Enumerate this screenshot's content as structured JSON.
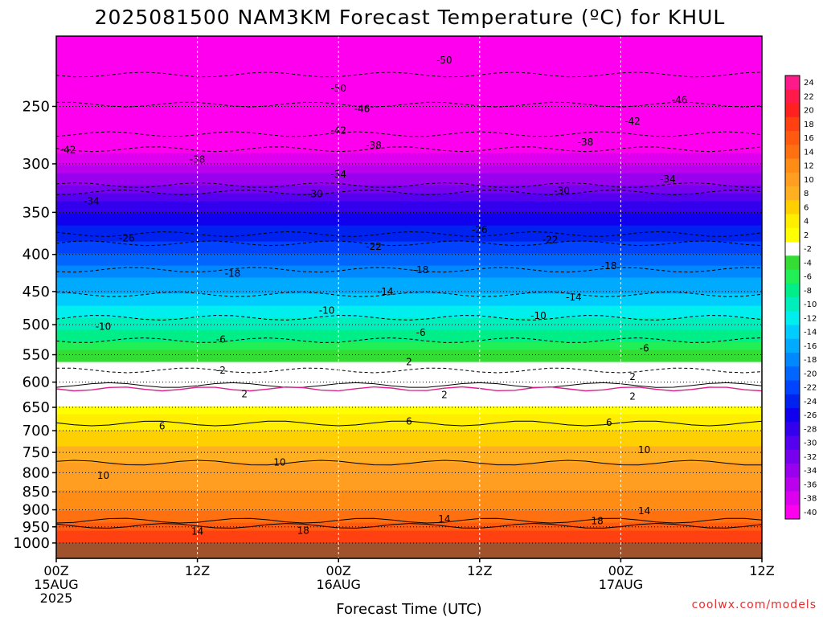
{
  "title": "2025081500 NAM3KM Forecast Temperature (ºC) for KHUL",
  "credit": "coolwx.com/models",
  "chart_data": {
    "type": "heatmap",
    "title": "2025081500 NAM3KM Forecast Temperature (ºC) for KHUL",
    "xlabel": "Forecast Time (UTC)",
    "ylabel": "",
    "x_range_hours": [
      0,
      60
    ],
    "y_range_hpa": [
      1050,
      200
    ],
    "y_scale": "log",
    "grid": true,
    "x_ticks": [
      {
        "hour": 0,
        "lines": [
          "00Z",
          "15AUG",
          "2025"
        ]
      },
      {
        "hour": 12,
        "lines": [
          "12Z"
        ]
      },
      {
        "hour": 24,
        "lines": [
          "00Z",
          "16AUG"
        ]
      },
      {
        "hour": 36,
        "lines": [
          "12Z"
        ]
      },
      {
        "hour": 48,
        "lines": [
          "00Z",
          "17AUG"
        ]
      },
      {
        "hour": 60,
        "lines": [
          "12Z"
        ]
      }
    ],
    "y_ticks": [
      250,
      300,
      350,
      400,
      450,
      500,
      550,
      600,
      650,
      700,
      750,
      800,
      850,
      900,
      950,
      1000
    ],
    "ground_pressure_hpa": 1000,
    "temperature_profile": [
      {
        "p": 1000,
        "t": 19
      },
      {
        "p": 950,
        "t": 16
      },
      {
        "p": 900,
        "t": 13
      },
      {
        "p": 850,
        "t": 11
      },
      {
        "p": 800,
        "t": 10
      },
      {
        "p": 750,
        "t": 8
      },
      {
        "p": 700,
        "t": 5
      },
      {
        "p": 650,
        "t": 2
      },
      {
        "p": 600,
        "t": 0
      },
      {
        "p": 550,
        "t": -4
      },
      {
        "p": 500,
        "t": -10
      },
      {
        "p": 450,
        "t": -15
      },
      {
        "p": 400,
        "t": -21
      },
      {
        "p": 350,
        "t": -27
      },
      {
        "p": 300,
        "t": -37
      },
      {
        "p": 250,
        "t": -46
      },
      {
        "p": 200,
        "t": -52
      }
    ],
    "contour_labels": [
      {
        "hour": 33,
        "p": 216,
        "value": "-50"
      },
      {
        "hour": 24,
        "p": 236,
        "value": "-50"
      },
      {
        "hour": 53,
        "p": 245,
        "value": "-46"
      },
      {
        "hour": 26,
        "p": 252,
        "value": "-46"
      },
      {
        "hour": 49,
        "p": 262,
        "value": "-42"
      },
      {
        "hour": 1,
        "p": 287,
        "value": "-42"
      },
      {
        "hour": 24,
        "p": 270,
        "value": "-42"
      },
      {
        "hour": 12,
        "p": 296,
        "value": "-38"
      },
      {
        "hour": 27,
        "p": 283,
        "value": "-38"
      },
      {
        "hour": 45,
        "p": 280,
        "value": "-38"
      },
      {
        "hour": 24,
        "p": 310,
        "value": "-34"
      },
      {
        "hour": 3,
        "p": 338,
        "value": "-34"
      },
      {
        "hour": 52,
        "p": 315,
        "value": "-34"
      },
      {
        "hour": 22,
        "p": 330,
        "value": "-30"
      },
      {
        "hour": 43,
        "p": 327,
        "value": "-30"
      },
      {
        "hour": 36,
        "p": 370,
        "value": "-26"
      },
      {
        "hour": 6,
        "p": 380,
        "value": "-26"
      },
      {
        "hour": 27,
        "p": 390,
        "value": "-22"
      },
      {
        "hour": 42,
        "p": 382,
        "value": "-22"
      },
      {
        "hour": 15,
        "p": 425,
        "value": "-18"
      },
      {
        "hour": 31,
        "p": 420,
        "value": "-18"
      },
      {
        "hour": 47,
        "p": 415,
        "value": "-18"
      },
      {
        "hour": 28,
        "p": 450,
        "value": "-14"
      },
      {
        "hour": 44,
        "p": 458,
        "value": "-14"
      },
      {
        "hour": 4,
        "p": 503,
        "value": "-10"
      },
      {
        "hour": 23,
        "p": 478,
        "value": "-10"
      },
      {
        "hour": 41,
        "p": 486,
        "value": "-10"
      },
      {
        "hour": 14,
        "p": 524,
        "value": "-6"
      },
      {
        "hour": 31,
        "p": 513,
        "value": "-6"
      },
      {
        "hour": 50,
        "p": 539,
        "value": "-6"
      },
      {
        "hour": 14,
        "p": 578,
        "value": "-2"
      },
      {
        "hour": 30,
        "p": 563,
        "value": "2"
      },
      {
        "hour": 49,
        "p": 590,
        "value": "2"
      },
      {
        "hour": 16,
        "p": 623,
        "value": "2"
      },
      {
        "hour": 33,
        "p": 625,
        "value": "2"
      },
      {
        "hour": 49,
        "p": 628,
        "value": "2"
      },
      {
        "hour": 9,
        "p": 690,
        "value": "6"
      },
      {
        "hour": 30,
        "p": 680,
        "value": "6"
      },
      {
        "hour": 47,
        "p": 682,
        "value": "6"
      },
      {
        "hour": 19,
        "p": 774,
        "value": "10"
      },
      {
        "hour": 4,
        "p": 807,
        "value": "10"
      },
      {
        "hour": 50,
        "p": 744,
        "value": "10"
      },
      {
        "hour": 33,
        "p": 927,
        "value": "14"
      },
      {
        "hour": 12,
        "p": 964,
        "value": "14"
      },
      {
        "hour": 50,
        "p": 903,
        "value": "14"
      },
      {
        "hour": 21,
        "p": 961,
        "value": "18"
      },
      {
        "hour": 46,
        "p": 933,
        "value": "18"
      }
    ],
    "colorbar": {
      "labels": [
        "24",
        "22",
        "20",
        "18",
        "16",
        "14",
        "12",
        "10",
        "8",
        "6",
        "4",
        "2",
        "-2",
        "-4",
        "-6",
        "-8",
        "-10",
        "-12",
        "-14",
        "-16",
        "-18",
        "-20",
        "-22",
        "-24",
        "-26",
        "-28",
        "-30",
        "-32",
        "-34",
        "-36",
        "-38",
        "-40"
      ],
      "colors": [
        "#ff1a8c",
        "#ff1a4a",
        "#ff2020",
        "#ff4010",
        "#ff5a10",
        "#ff7010",
        "#ff8c14",
        "#ff9e20",
        "#ffb020",
        "#ffd000",
        "#ffee00",
        "#ffff00",
        "#ffffff",
        "#33dd33",
        "#22ee55",
        "#00ee88",
        "#00eebb",
        "#00eeee",
        "#00ccff",
        "#00aaff",
        "#0088ff",
        "#0066ff",
        "#0044ff",
        "#0022ee",
        "#1100ee",
        "#3300ee",
        "#5500ee",
        "#7700ee",
        "#9900ee",
        "#bb00ee",
        "#dd00ee",
        "#ff00ee"
      ]
    }
  }
}
